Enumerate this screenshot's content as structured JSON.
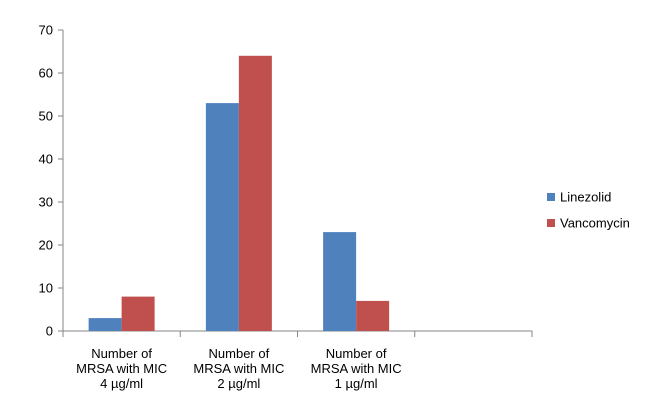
{
  "chart_data": {
    "type": "bar",
    "categories": [
      [
        "Number of",
        "MRSA with MIC",
        "4 µg/ml"
      ],
      [
        "Number of",
        "MRSA with MIC",
        "2 µg/ml"
      ],
      [
        "Number of",
        "MRSA with MIC",
        "1 µg/ml"
      ],
      []
    ],
    "series": [
      {
        "name": "Linezolid",
        "values": [
          3,
          53,
          23,
          null
        ],
        "color": "#4f81bd"
      },
      {
        "name": "Vancomycin",
        "values": [
          8,
          64,
          7,
          null
        ],
        "color": "#c0504d"
      }
    ],
    "ylim": [
      0,
      70
    ],
    "yticks": [
      0,
      10,
      20,
      30,
      40,
      50,
      60,
      70
    ],
    "grid": false,
    "legend_position": "right"
  }
}
